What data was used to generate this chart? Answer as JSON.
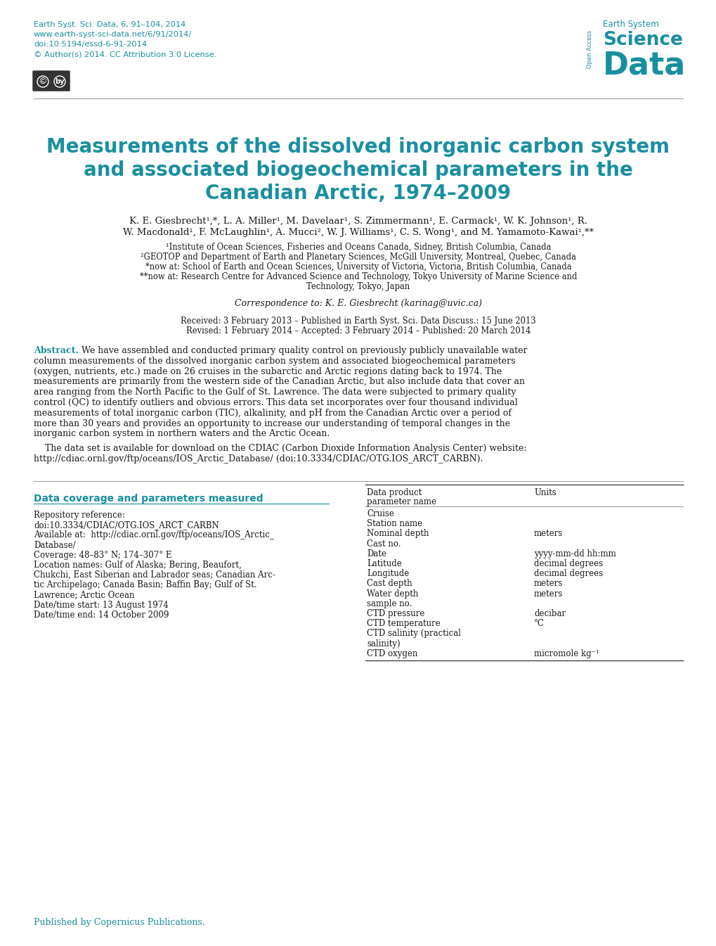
{
  "teal_color": "#1a8fa0",
  "black": "#1a1a1a",
  "header_line1": "Earth Syst. Sci. Data, 6, 91–104, 2014",
  "header_line2": "www.earth-syst-sci-data.net/6/91/2014/",
  "header_line3": "doi:10.5194/essd-6-91-2014",
  "header_line4": "© Author(s) 2014. CC Attribution 3.0 License.",
  "journal_name1": "Earth System",
  "journal_name2": "Science",
  "journal_name3": "Data",
  "open_access": "Open Access",
  "title_line1": "Measurements of the dissolved inorganic carbon system",
  "title_line2": "and associated biogeochemical parameters in the",
  "title_line3": "Canadian Arctic, 1974–2009",
  "author_line1": "K. E. Giesbrecht¹,*, L. A. Miller¹, M. Davelaar¹, S. Zimmermann¹, E. Carmack¹, W. K. Johnson¹, R.",
  "author_line2": "W. Macdonald¹, F. McLaughlin¹, A. Mucci², W. J. Williams¹, C. S. Wong¹, and M. Yamamoto-Kawai¹,**",
  "affil1": "¹Institute of Ocean Sciences, Fisheries and Oceans Canada, Sidney, British Columbia, Canada",
  "affil2": "²GEOTOP and Department of Earth and Planetary Sciences, McGill University, Montreal, Quebec, Canada",
  "affil3": "*now at: School of Earth and Ocean Sciences, University of Victoria, Victoria, British Columbia, Canada",
  "affil4a": "**now at: Research Centre for Advanced Science and Technology, Tokyo University of Marine Science and",
  "affil4b": "Technology, Tokyo, Japan",
  "correspondence": "Correspondence to: K. E. Giesbrecht (karinag@uvic.ca)",
  "received": "Received: 3 February 2013 – Published in Earth Syst. Sci. Data Discuss.: 15 June 2013",
  "revised": "Revised: 1 February 2014 – Accepted: 3 February 2014 – Published: 20 March 2014",
  "abstract_label": "Abstract.",
  "abstract_lines": [
    "We have assembled and conducted primary quality control on previously publicly unavailable water",
    "column measurements of the dissolved inorganic carbon system and associated biogeochemical parameters",
    "(oxygen, nutrients, etc.) made on 26 cruises in the subarctic and Arctic regions dating back to 1974. The",
    "measurements are primarily from the western side of the Canadian Arctic, but also include data that cover an",
    "area ranging from the North Pacific to the Gulf of St. Lawrence. The data were subjected to primary quality",
    "control (QC) to identify outliers and obvious errors. This data set incorporates over four thousand individual",
    "measurements of total inorganic carbon (TIC), alkalinity, and pH from the Canadian Arctic over a period of",
    "more than 30 years and provides an opportunity to increase our understanding of temporal changes in the",
    "inorganic carbon system in northern waters and the Arctic Ocean."
  ],
  "abstract_p2a": "    The data set is available for download on the CDIAC (Carbon Dioxide Information Analysis Center) website:",
  "abstract_p2b": "http://cdiac.ornl.gov/ftp/oceans/IOS_Arctic_Database/ (doi:10.3334/CDIAC/OTG.IOS_ARCT_CARBN).",
  "left_section_title": "Data coverage and parameters measured",
  "repo_lines": [
    "Repository reference:",
    "doi:10.3334/CDIAC/OTG.IOS_ARCT_CARBN",
    "Available at:  http://cdiac.ornl.gov/ftp/oceans/IOS_Arctic_",
    "Database/",
    "Coverage: 48–83° N; 174–307° E",
    "Location names: Gulf of Alaska; Bering, Beaufort,",
    "Chukchi, East Siberian and Labrador seas; Canadian Arc-",
    "tic Archipelago; Canada Basin; Baffin Bay; Gulf of St.",
    "Lawrence; Arctic Ocean",
    "Date/time start: 13 August 1974",
    "Date/time end: 14 October 2009"
  ],
  "table_col1": "Data product",
  "table_col1b": "parameter name",
  "table_col2": "Units",
  "table_rows": [
    [
      "Cruise",
      ""
    ],
    [
      "Station name",
      ""
    ],
    [
      "Nominal depth",
      "meters"
    ],
    [
      "Cast no.",
      ""
    ],
    [
      "Date",
      "yyyy-mm-dd hh:mm"
    ],
    [
      "Latitude",
      "decimal degrees"
    ],
    [
      "Longitude",
      "decimal degrees"
    ],
    [
      "Cast depth",
      "meters"
    ],
    [
      "Water depth",
      "meters"
    ],
    [
      "sample no.",
      ""
    ],
    [
      "CTD pressure",
      "decibar"
    ],
    [
      "CTD temperature",
      "°C"
    ],
    [
      "CTD salinity (practical",
      ""
    ],
    [
      "salinity)",
      ""
    ],
    [
      "CTD oxygen",
      "micromole kg⁻¹"
    ]
  ],
  "footer": "Published by Copernicus Publications.",
  "bg_color": "#ffffff"
}
